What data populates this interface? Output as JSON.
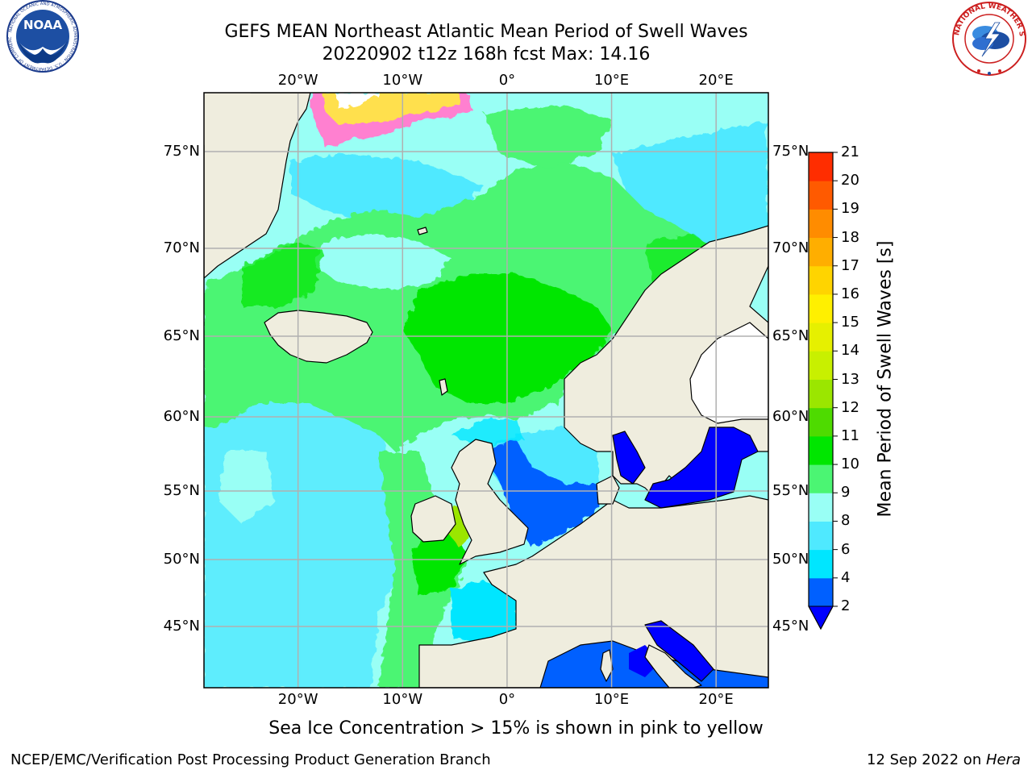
{
  "title_line1": "GEFS MEAN Northeast Atlantic Mean Period of Swell Waves",
  "title_line2": "20220902 t12z 168h fcst   Max: 14.16",
  "logos": {
    "left": {
      "name": "noaa-logo",
      "text": "NOAA",
      "ring_text": "NATIONAL OCEANIC AND ATMOSPHERIC ADMINISTRATION · U.S. DEPARTMENT OF COMMERCE"
    },
    "right": {
      "name": "nws-logo",
      "ring_text": "NATIONAL WEATHER SERVICE"
    }
  },
  "map": {
    "projection": "latitude-longitude",
    "lon_range": [
      -29,
      25
    ],
    "lat_range": [
      41,
      78
    ],
    "lon_ticks": [
      "20°W",
      "10°W",
      "0°",
      "10°E",
      "20°E"
    ],
    "lat_ticks": [
      "45°N",
      "50°N",
      "55°N",
      "60°N",
      "65°N",
      "70°N",
      "75°N"
    ],
    "land_color": "#efedde",
    "grid": true
  },
  "colorbar": {
    "label": "Mean Period of Swell Waves [s]",
    "ticks": [
      "2",
      "4",
      "6",
      "8",
      "9",
      "10",
      "11",
      "12",
      "13",
      "14",
      "15",
      "16",
      "17",
      "18",
      "19",
      "20",
      "21"
    ],
    "colors": [
      "#0060ff",
      "#00e6ff",
      "#4fe9ff",
      "#99fff5",
      "#4bf573",
      "#00e600",
      "#4edb00",
      "#9be600",
      "#c8f000",
      "#e6f000",
      "#fff000",
      "#ffd400",
      "#ffae00",
      "#ff8c00",
      "#ff5a00",
      "#ff2d00"
    ],
    "under_color": "#0000ff",
    "extend": "min"
  },
  "note": "Sea Ice Concentration > 15% is shown in pink to yellow",
  "footer_left": "NCEP/EMC/Verification Post Processing Product Generation Branch",
  "footer_right_prefix": "12 Sep 2022 on ",
  "footer_right_host": "Hera"
}
